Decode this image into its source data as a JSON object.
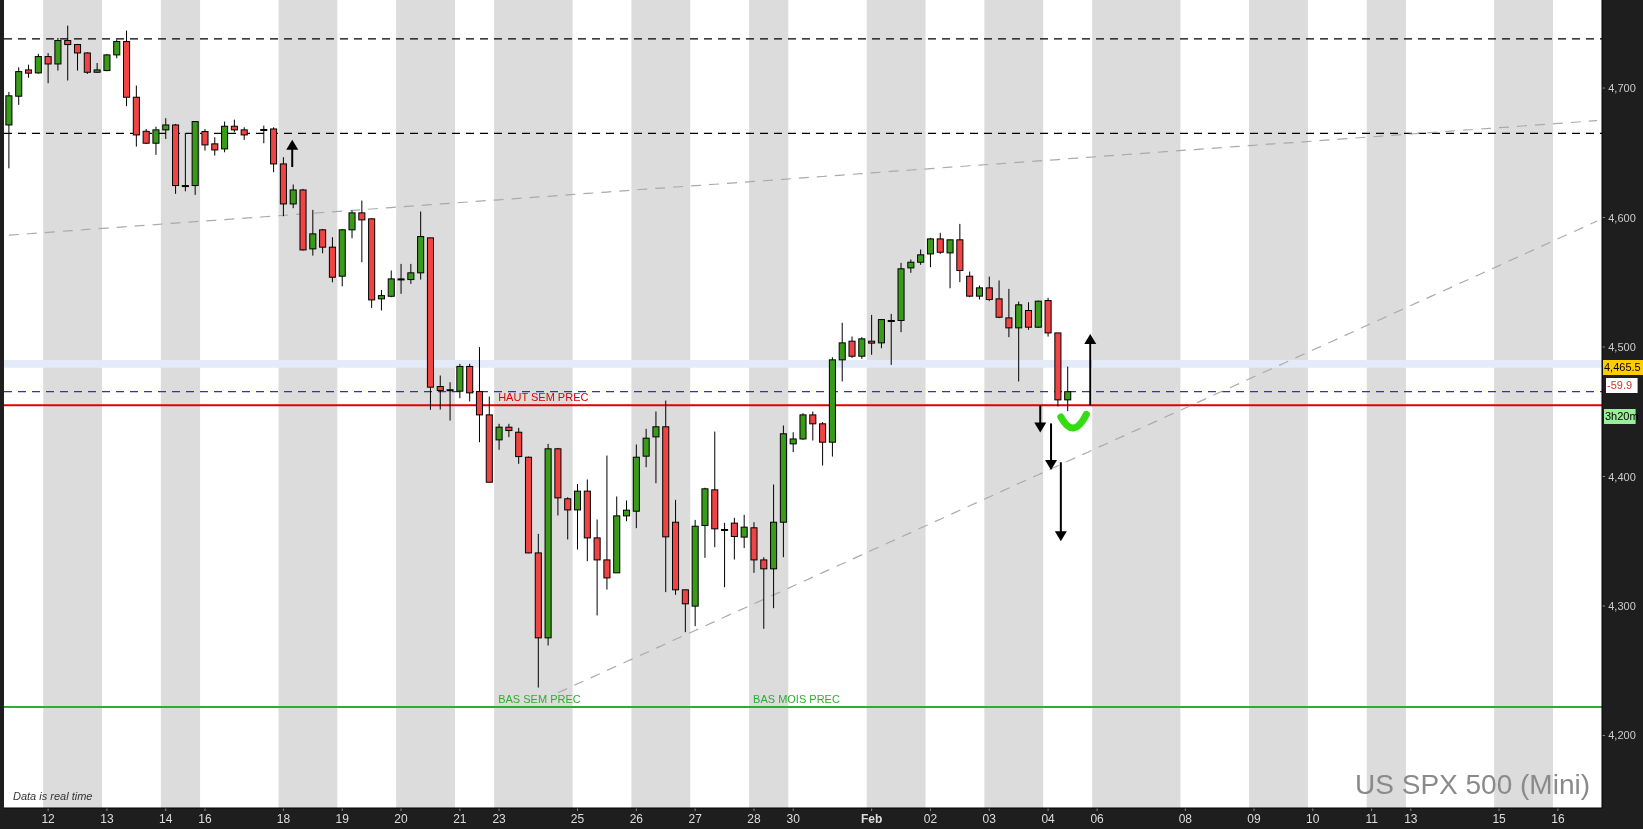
{
  "chart_data": {
    "type": "candlestick",
    "title": "US SPX 500 (Mini)",
    "categories": [
      null,
      null,
      null,
      null,
      "12",
      null,
      null,
      null,
      null,
      null,
      "13",
      null,
      null,
      null,
      null,
      null,
      "14",
      null,
      null,
      null,
      "16",
      null,
      null,
      null,
      null,
      null,
      null,
      null,
      "18",
      null,
      null,
      null,
      null,
      null,
      "19",
      null,
      null,
      null,
      null,
      null,
      "20",
      null,
      null,
      null,
      null,
      null,
      "21",
      null,
      null,
      null,
      "23",
      null,
      null,
      null,
      null,
      null,
      null,
      null,
      "25",
      null,
      null,
      null,
      null,
      null,
      "26",
      null,
      null,
      null,
      null,
      null,
      "27",
      null,
      null,
      null,
      null,
      null,
      "28",
      null,
      null,
      null,
      "30",
      null,
      null,
      null,
      null,
      null,
      null,
      null,
      "Feb",
      null,
      null,
      null,
      null,
      null,
      "02",
      null,
      null,
      null,
      null,
      null,
      "03",
      null,
      null,
      null,
      null,
      null,
      "04",
      null,
      null,
      null,
      null,
      "06",
      null,
      null,
      null,
      null,
      null,
      null,
      null,
      null,
      "08",
      null,
      null,
      null,
      null,
      null,
      null,
      "09",
      null,
      null,
      null,
      null,
      null,
      "10",
      null,
      null,
      null,
      null,
      null,
      "11",
      null,
      null,
      null,
      "13",
      null,
      null,
      null,
      null,
      null,
      null,
      null,
      null,
      "15",
      null,
      null,
      null,
      null,
      null,
      "16",
      null,
      null,
      null,
      null
    ],
    "ohlc": [
      [
        4671.5,
        4697,
        4638,
        4694
      ],
      [
        4693.7,
        4716,
        4687,
        4712.7
      ],
      [
        4714,
        4718,
        4708,
        4711.5
      ],
      [
        4711.7,
        4726.4,
        4711,
        4724.3
      ],
      [
        4724.3,
        4727,
        4703.7,
        4718.6
      ],
      [
        4718.6,
        4738.7,
        4713.5,
        4736.7
      ],
      [
        4736.7,
        4748.2,
        4705.8,
        4733.6
      ],
      [
        4733.6,
        4734.1,
        4713.5,
        4727.1
      ],
      [
        4727.1,
        4727.6,
        4710.9,
        4712.2
      ],
      [
        4712.2,
        4719.4,
        4711.7,
        4714
      ],
      [
        4713.5,
        4726.4,
        4713,
        4725.6
      ],
      [
        4725.6,
        4737.4,
        4723,
        4735.9
      ],
      [
        4735.9,
        4744.4,
        4686,
        4692.9
      ],
      [
        4692.9,
        4701.9,
        4654.8,
        4663.8
      ],
      [
        4666.6,
        4668.4,
        4656.8,
        4657.4
      ],
      [
        4657.4,
        4670.2,
        4648.4,
        4667.7
      ],
      [
        4667.7,
        4676.7,
        4660.7,
        4671.5
      ],
      [
        4671.5,
        4672.3,
        4618.3,
        4624.7
      ],
      [
        4624.7,
        4665.4,
        4620.3,
        4624.7
      ],
      [
        4624.7,
        4674.1,
        4617.5,
        4674.1
      ],
      [
        4666.4,
        4668.4,
        4651.7,
        4656.1
      ],
      [
        4656.9,
        4662,
        4647.9,
        4652.2
      ],
      [
        4653,
        4674.1,
        4650.4,
        4670.5
      ],
      [
        4670.5,
        4675.6,
        4665.9,
        4667.7
      ],
      [
        4667.7,
        4669.7,
        4660,
        4663.8
      ],
      null,
      [
        4668,
        4671,
        4657.4,
        4668
      ],
      [
        4668.4,
        4669.7,
        4635,
        4641.4
      ],
      [
        4641.4,
        4646.6,
        4601,
        4610.5
      ],
      [
        4610.5,
        4625.5,
        4607.2,
        4621.3
      ],
      [
        4621.3,
        4622.1,
        4574.5,
        4575
      ],
      [
        4575.8,
        4605.9,
        4570.6,
        4587.4
      ],
      [
        4590.5,
        4591.2,
        4572.4,
        4577.1
      ],
      [
        4577.1,
        4584.8,
        4550,
        4553.9
      ],
      [
        4554.7,
        4591.2,
        4546.9,
        4590.5
      ],
      [
        4590.5,
        4605.4,
        4584,
        4603.6
      ],
      [
        4603.6,
        4613.1,
        4565.5,
        4598.2
      ],
      [
        4599,
        4599.5,
        4530.2,
        4536.4
      ],
      [
        4537.2,
        4544.1,
        4528.2,
        4539.7
      ],
      [
        4539.2,
        4559.1,
        4538.5,
        4552.6
      ],
      [
        4552.6,
        4564.2,
        4541.1,
        4552.6
      ],
      [
        4552.1,
        4564.2,
        4548.8,
        4557.3
      ],
      [
        4557.3,
        4604.6,
        4552.1,
        4585.3
      ],
      [
        4584.3,
        4584.3,
        4451.5,
        4469
      ],
      [
        4469.5,
        4478,
        4451.7,
        4466.4
      ],
      [
        4467,
        4472.8,
        4443.2,
        4467
      ],
      [
        4465.9,
        4487,
        4460.5,
        4485
      ],
      [
        4485,
        4487,
        4458,
        4464.6
      ],
      [
        4465.6,
        4499.9,
        4426.5,
        4447.6
      ],
      [
        4447.6,
        4461.8,
        4395.6,
        4395.6
      ],
      [
        4428.3,
        4440.7,
        4420.6,
        4438.1
      ],
      [
        4438.1,
        4440.7,
        4430.4,
        4435.5
      ],
      [
        4434.2,
        4437.6,
        4409.8,
        4415.4
      ],
      [
        4414.9,
        4415.4,
        4340.8,
        4341
      ],
      [
        4341,
        4355.7,
        4237,
        4275.4
      ],
      [
        4275.4,
        4425.2,
        4269.5,
        4421.4
      ],
      [
        4421.4,
        4422.1,
        4369.9,
        4383.5
      ],
      [
        4382.8,
        4384,
        4351.4,
        4374.2
      ],
      [
        4374.2,
        4394.3,
        4343.6,
        4388.7
      ],
      [
        4388.7,
        4397.7,
        4334.6,
        4352.6
      ],
      [
        4352.6,
        4366.8,
        4292.7,
        4335.6
      ],
      [
        4335.6,
        4416.2,
        4312.7,
        4321.7
      ],
      [
        4325.6,
        4384.6,
        4325.6,
        4369.6
      ],
      [
        4369.6,
        4381.5,
        4365.5,
        4374
      ],
      [
        4373.2,
        4424.7,
        4360.1,
        4414.9
      ],
      [
        4415.7,
        4436.8,
        4407.2,
        4429.6
      ],
      [
        4430.6,
        4450.2,
        4394.8,
        4438.4
      ],
      [
        4438.4,
        4458.7,
        4310.7,
        4353.4
      ],
      [
        4364.7,
        4382,
        4308.6,
        4312.5
      ],
      [
        4312.5,
        4312.5,
        4279.8,
        4301.7
      ],
      [
        4299.9,
        4366.5,
        4284.4,
        4361.6
      ],
      [
        4362.2,
        4391.3,
        4337.2,
        4390.5
      ],
      [
        4389.7,
        4434.7,
        4345.4,
        4359.6
      ],
      [
        4359.1,
        4364.2,
        4314.5,
        4359.1
      ],
      [
        4364,
        4368.1,
        4335.9,
        4353.7
      ],
      [
        4353.2,
        4370.4,
        4344.7,
        4360.9
      ],
      [
        4360.4,
        4364.7,
        4325.6,
        4335.6
      ],
      [
        4335.6,
        4337.7,
        4282.4,
        4328.7
      ],
      [
        4328.7,
        4393.8,
        4298.3,
        4364.7
      ],
      [
        4364.7,
        4439.4,
        4337.7,
        4433
      ],
      [
        4425.2,
        4434.2,
        4418.8,
        4429
      ],
      [
        4429,
        4448.9,
        4428.3,
        4447.6
      ],
      [
        4447.6,
        4450.2,
        4427.8,
        4440.7
      ],
      [
        4440.7,
        4442,
        4408.5,
        4426.5
      ],
      [
        4426.5,
        4492.1,
        4415.4,
        4490.1
      ],
      [
        4490.1,
        4518.7,
        4473.4,
        4503.2
      ],
      [
        4504.5,
        4508.1,
        4491.6,
        4492.9
      ],
      [
        4492.9,
        4507.6,
        4490.9,
        4506.3
      ],
      [
        4504.5,
        4524.8,
        4494,
        4503
      ],
      [
        4503.2,
        4521.2,
        4499.1,
        4521.2
      ],
      [
        4520.5,
        4525.6,
        4486.2,
        4520.5
      ],
      [
        4520.5,
        4565,
        4511.5,
        4560.4
      ],
      [
        4561.1,
        4567.6,
        4557.3,
        4565.5
      ],
      [
        4565.5,
        4575.3,
        4563.5,
        4571.2
      ],
      [
        4571.9,
        4584.3,
        4561.7,
        4583.5
      ],
      [
        4583.5,
        4588.2,
        4571.9,
        4573.2
      ],
      [
        4572.7,
        4582.8,
        4545.4,
        4582.8
      ],
      [
        4582.8,
        4595.1,
        4550.1,
        4559.1
      ],
      [
        4554.7,
        4558.3,
        4538.5,
        4539.3
      ],
      [
        4539.3,
        4547.5,
        4536.7,
        4545.7
      ],
      [
        4545.7,
        4554.4,
        4535.4,
        4536.7
      ],
      [
        4537.2,
        4551.4,
        4522.3,
        4523
      ],
      [
        4522.5,
        4544.9,
        4507.6,
        4514.8
      ],
      [
        4514.8,
        4535.1,
        4473.4,
        4532.6
      ],
      [
        4528.2,
        4534.6,
        4513.3,
        4515.3
      ],
      [
        4515.3,
        4535.9,
        4514.8,
        4535.4
      ],
      [
        4535.9,
        4538,
        4508.1,
        4510.9
      ],
      [
        4510.9,
        4510.9,
        4454.1,
        4459.2
      ],
      [
        4459.2,
        4484.9,
        4450.5,
        4465.5
      ],
      null,
      null,
      null,
      null,
      null,
      null,
      null,
      null,
      null,
      null,
      null,
      null,
      null,
      null,
      null,
      null,
      null,
      null,
      null,
      null,
      null,
      null,
      null,
      null,
      null,
      null,
      null,
      null,
      null,
      null,
      null,
      null,
      null,
      null,
      null,
      null,
      null,
      null,
      null,
      null,
      null,
      null,
      null,
      null,
      null,
      null,
      null,
      null,
      null,
      null,
      null,
      null,
      null,
      null
    ],
    "series": [
      {
        "type": "line",
        "color": "#aaaaaa",
        "line_style": "dashed",
        "values": [
          4586.4,
          4586.9,
          4587.5,
          4588.0,
          4588.6,
          4589.1,
          4589.7,
          4590.2,
          4590.8,
          4591.3,
          4591.9,
          4592.4,
          4593.0,
          4593.5,
          4594.1,
          4594.6,
          4595.2,
          4595.7,
          4596.3,
          4596.8,
          4597.3,
          4597.8,
          4598.4,
          4598.9,
          4599.5,
          4600.0,
          4600.6,
          4601.1,
          4601.7,
          4602.2,
          4602.8,
          4603.3,
          4603.9,
          4604.4,
          4605.0,
          4605.5,
          4606.1,
          4606.6,
          4607.2,
          4607.7,
          4608.3,
          4608.8,
          4609.4,
          4609.9,
          4610.5,
          4611.0,
          4611.6,
          4612.1,
          4612.7,
          4613.2,
          4613.7,
          4614.2,
          4614.8,
          4615.3,
          4615.9,
          4616.4,
          4617.0,
          4617.5,
          4618.1,
          4618.6,
          4619.2,
          4619.7,
          4620.3,
          4620.8,
          4621.4,
          4621.9,
          4622.5,
          4623.0,
          4623.6,
          4624.1,
          4624.6,
          4625.1,
          4625.7,
          4626.2,
          4626.8,
          4627.3,
          4627.9,
          4628.4,
          4629.0,
          4629.5,
          4630.1,
          4630.6,
          4631.2,
          4631.7,
          4632.3,
          4632.8,
          4633.4,
          4633.9,
          4634.5,
          4635.0,
          4635.6,
          4636.1,
          4636.7,
          4637.2,
          4637.8,
          4638.3,
          4638.9,
          4639.4,
          4640.0,
          4640.5,
          4641.0,
          4641.5,
          4642.1,
          4642.6,
          4643.2,
          4643.7,
          4644.3,
          4644.8,
          4645.4,
          4645.9,
          4646.5,
          4647.0,
          4647.6,
          4648.1,
          4648.7,
          4649.2,
          4649.8,
          4650.3,
          4650.9,
          4651.4,
          4652.0,
          4652.5,
          4653.1,
          4653.6,
          4654.2,
          4654.7,
          4655.3,
          4655.8,
          4656.4,
          4656.9,
          4657.4,
          4657.9,
          4658.5,
          4659.0,
          4659.6,
          4660.1,
          4660.7,
          4661.2,
          4661.8,
          4662.3,
          4662.9,
          4663.4,
          4664.0,
          4664.5,
          4665.1,
          4665.6,
          4666.2,
          4666.7,
          4667.3,
          4667.8,
          4668.3,
          4668.8,
          4669.4,
          4669.9,
          4670.5,
          4671.0,
          4671.6,
          4672.1,
          4672.7,
          4673.2,
          4673.8,
          4674.3,
          4674.9
        ]
      },
      {
        "type": "line",
        "color": "#aaaaaa",
        "line_style": "dashed",
        "values": [
          null,
          null,
          null,
          null,
          null,
          null,
          null,
          null,
          null,
          null,
          null,
          null,
          null,
          null,
          null,
          null,
          null,
          null,
          null,
          null,
          null,
          null,
          null,
          null,
          null,
          null,
          null,
          null,
          null,
          null,
          null,
          null,
          null,
          null,
          null,
          null,
          null,
          null,
          null,
          null,
          null,
          null,
          null,
          null,
          null,
          null,
          null,
          null,
          null,
          null,
          null,
          null,
          null,
          null,
          null,
          null,
          4233,
          4236.4,
          4239.9,
          4243.3,
          4246.7,
          4250.2,
          4253.6,
          4257.1,
          4260.5,
          4263.9,
          4267.4,
          4270.8,
          4274.3,
          4277.7,
          4281.1,
          4284.6,
          4288.0,
          4291.5,
          4294.9,
          4298.3,
          4301.7,
          4305.1,
          4308.6,
          4312.0,
          4315.4,
          4318.9,
          4322.3,
          4325.8,
          4329.2,
          4332.6,
          4336.1,
          4339.5,
          4343.0,
          4346.4,
          4349.8,
          4353.3,
          4356.7,
          4360.2,
          4363.6,
          4367.0,
          4370.5,
          4373.9,
          4377.4,
          4380.8,
          4384.2,
          4387.7,
          4391.1,
          4394.6,
          4398.0,
          4401.4,
          4404.9,
          4408.3,
          4411.8,
          4415.2,
          4418.6,
          4422.1,
          4425.5,
          4429.0,
          4432.4,
          4435.8,
          4439.2,
          4442.6,
          4446.1,
          4449.5,
          4452.9,
          4456.4,
          4459.8,
          4463.3,
          4466.7,
          4470.1,
          4473.6,
          4477.0,
          4480.5,
          4483.9,
          4487.3,
          4490.8,
          4494.2,
          4497.7,
          4501.1,
          4504.5,
          4508.0,
          4511.4,
          4514.9,
          4518.3,
          4521.7,
          4525.2,
          4528.6,
          4532.1,
          4535.5,
          4538.9,
          4542.3,
          4545.7,
          4549.2,
          4552.6,
          4556.0,
          4559.5,
          4562.9,
          4566.4,
          4569.8,
          4573.2,
          4576.7,
          4580.1,
          4583.6,
          4587.0,
          4590.4,
          4593.9,
          4597.3
        ]
      }
    ],
    "ylim": [
      4144,
      4768
    ],
    "yticks": [
      {
        "value": 4200,
        "label": "4,200"
      },
      {
        "value": 4300,
        "label": "4,300"
      },
      {
        "value": 4400,
        "label": "4,400"
      },
      {
        "value": 4500,
        "label": "4,500"
      },
      {
        "value": 4600,
        "label": "4,600"
      },
      {
        "value": 4700,
        "label": "4,700"
      }
    ],
    "ref_lines": [
      {
        "axis": "y",
        "value": 4738,
        "color": "#000000",
        "line_style": "dashed"
      },
      {
        "axis": "y",
        "value": 4665,
        "color": "#000000",
        "line_style": "dashed"
      },
      {
        "axis": "y",
        "value": 4465.5,
        "color": "#3333aa",
        "line_style": "dashed"
      },
      {
        "axis": "y",
        "value": 4455,
        "color": "#e00000",
        "line_style": "solid"
      },
      {
        "axis": "y",
        "value": 4222,
        "color": "#33aa33",
        "line_style": "solid"
      }
    ],
    "bands": [
      {
        "axis": "y",
        "from": 4484,
        "to": 4490,
        "color": "#e3eaf8"
      }
    ],
    "annotations": [
      "Data is real time",
      "4,465.5",
      "-59.9",
      "3h20m",
      {
        "text": "HAUT SEM PREC",
        "x": "23",
        "y": 4455
      },
      {
        "text": "BAS SEM PREC",
        "x": "23",
        "y": 4222
      },
      {
        "text": "BAS MOIS PREC",
        "x": "28",
        "y": 4222
      }
    ]
  }
}
